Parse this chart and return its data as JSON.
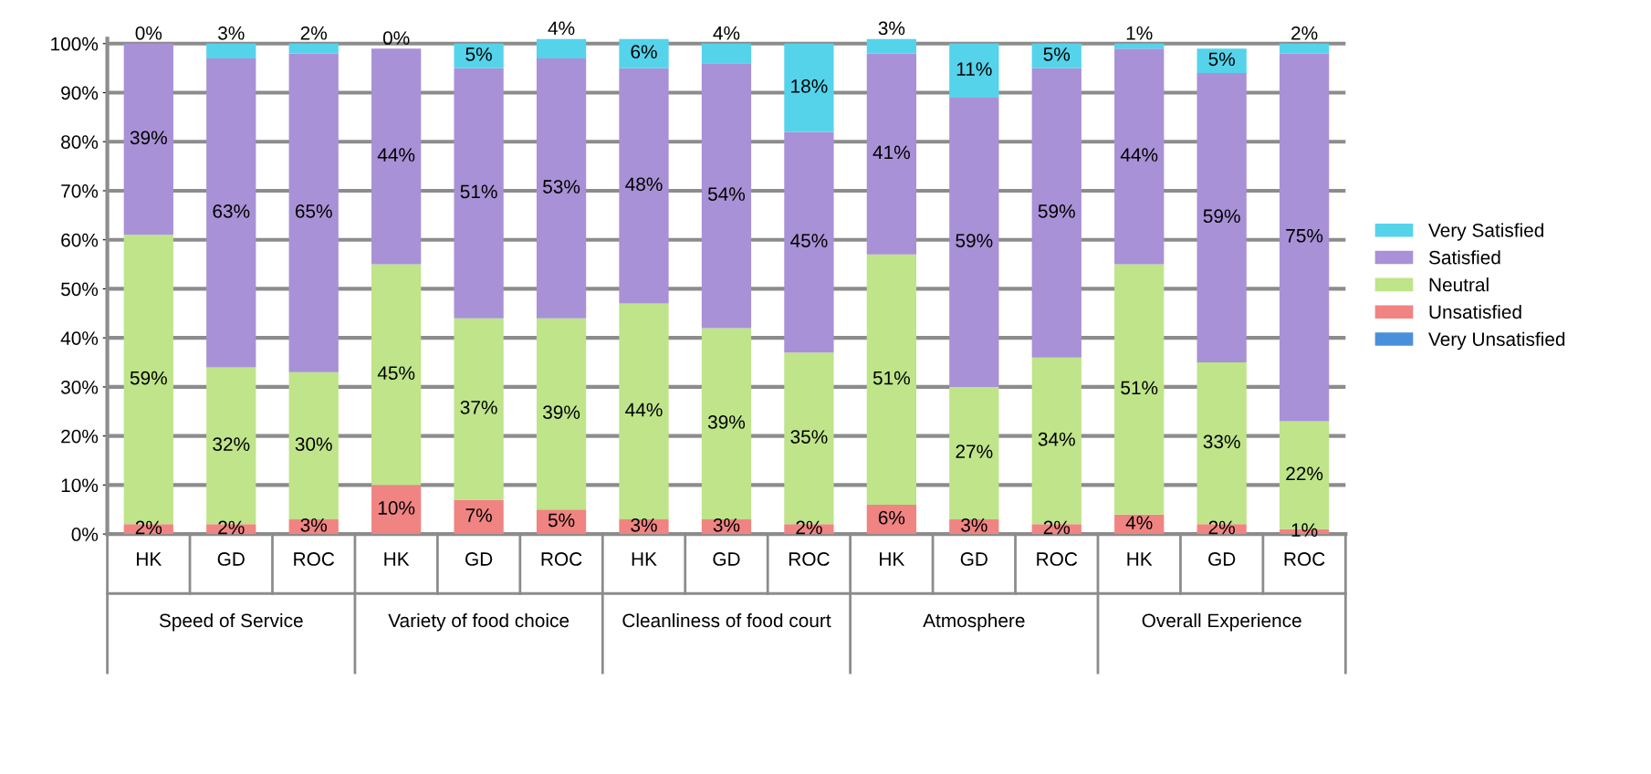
{
  "chart_data": {
    "type": "bar",
    "stacked": true,
    "categories": [
      "HK",
      "GD",
      "ROC",
      "HK",
      "GD",
      "ROC",
      "HK",
      "GD",
      "ROC",
      "HK",
      "GD",
      "ROC",
      "HK",
      "GD",
      "ROC"
    ],
    "annotations": [
      "Speed of Service",
      "Variety of food choice",
      "Cleanliness of food court",
      "Atmosphere",
      "Overall Experience"
    ],
    "series": [
      {
        "name": "Very Unsatisfied",
        "color": "#4a8fd9",
        "values": [
          0,
          0,
          0,
          0,
          0,
          0,
          0,
          0,
          0,
          0,
          0,
          0,
          0,
          0,
          0
        ],
        "value_labels": [
          null,
          null,
          null,
          null,
          null,
          null,
          null,
          null,
          null,
          null,
          null,
          null,
          null,
          null,
          null
        ]
      },
      {
        "name": "Unsatisfied",
        "color": "#f08482",
        "values": [
          2,
          2,
          3,
          10,
          7,
          5,
          3,
          3,
          2,
          6,
          3,
          2,
          4,
          2,
          1
        ],
        "value_labels": [
          "2%",
          "2%",
          "3%",
          "10%",
          "7%",
          "5%",
          "3%",
          "3%",
          "2%",
          "6%",
          "3%",
          "2%",
          "4%",
          "2%",
          "1%"
        ]
      },
      {
        "name": "Neutral",
        "color": "#bfe48a",
        "values": [
          59,
          32,
          30,
          45,
          37,
          39,
          44,
          39,
          35,
          51,
          27,
          34,
          51,
          33,
          22
        ],
        "value_labels": [
          "59%",
          "32%",
          "30%",
          "45%",
          "37%",
          "39%",
          "44%",
          "39%",
          "35%",
          "51%",
          "27%",
          "34%",
          "51%",
          "33%",
          "22%"
        ]
      },
      {
        "name": "Satisfied",
        "color": "#a891d6",
        "values": [
          39,
          63,
          65,
          44,
          51,
          53,
          48,
          54,
          45,
          41,
          59,
          59,
          44,
          59,
          75
        ],
        "value_labels": [
          "39%",
          "63%",
          "65%",
          "44%",
          "51%",
          "53%",
          "48%",
          "54%",
          "45%",
          "41%",
          "59%",
          "59%",
          "44%",
          "59%",
          "75%"
        ]
      },
      {
        "name": "Very Satisfied",
        "color": "#55d3ea",
        "values": [
          0,
          3,
          2,
          0,
          5,
          4,
          6,
          4,
          18,
          3,
          11,
          5,
          1,
          5,
          2
        ],
        "value_labels": [
          "0%",
          "3%",
          "2%",
          "0%",
          "5%",
          "4%",
          "6%",
          "4%",
          "18%",
          "3%",
          "11%",
          "5%",
          "1%",
          "5%",
          "2%"
        ]
      }
    ],
    "ylim": [
      0,
      101
    ],
    "yticks": [
      {
        "value": 0,
        "label": "0%"
      },
      {
        "value": 10,
        "label": "10%"
      },
      {
        "value": 20,
        "label": "20%"
      },
      {
        "value": 30,
        "label": "30%"
      },
      {
        "value": 40,
        "label": "40%"
      },
      {
        "value": 50,
        "label": "50%"
      },
      {
        "value": 60,
        "label": "60%"
      },
      {
        "value": 70,
        "label": "70%"
      },
      {
        "value": 80,
        "label": "80%"
      },
      {
        "value": 90,
        "label": "90%"
      },
      {
        "value": 100,
        "label": "100%"
      }
    ],
    "grid": "y",
    "legend": "right"
  }
}
